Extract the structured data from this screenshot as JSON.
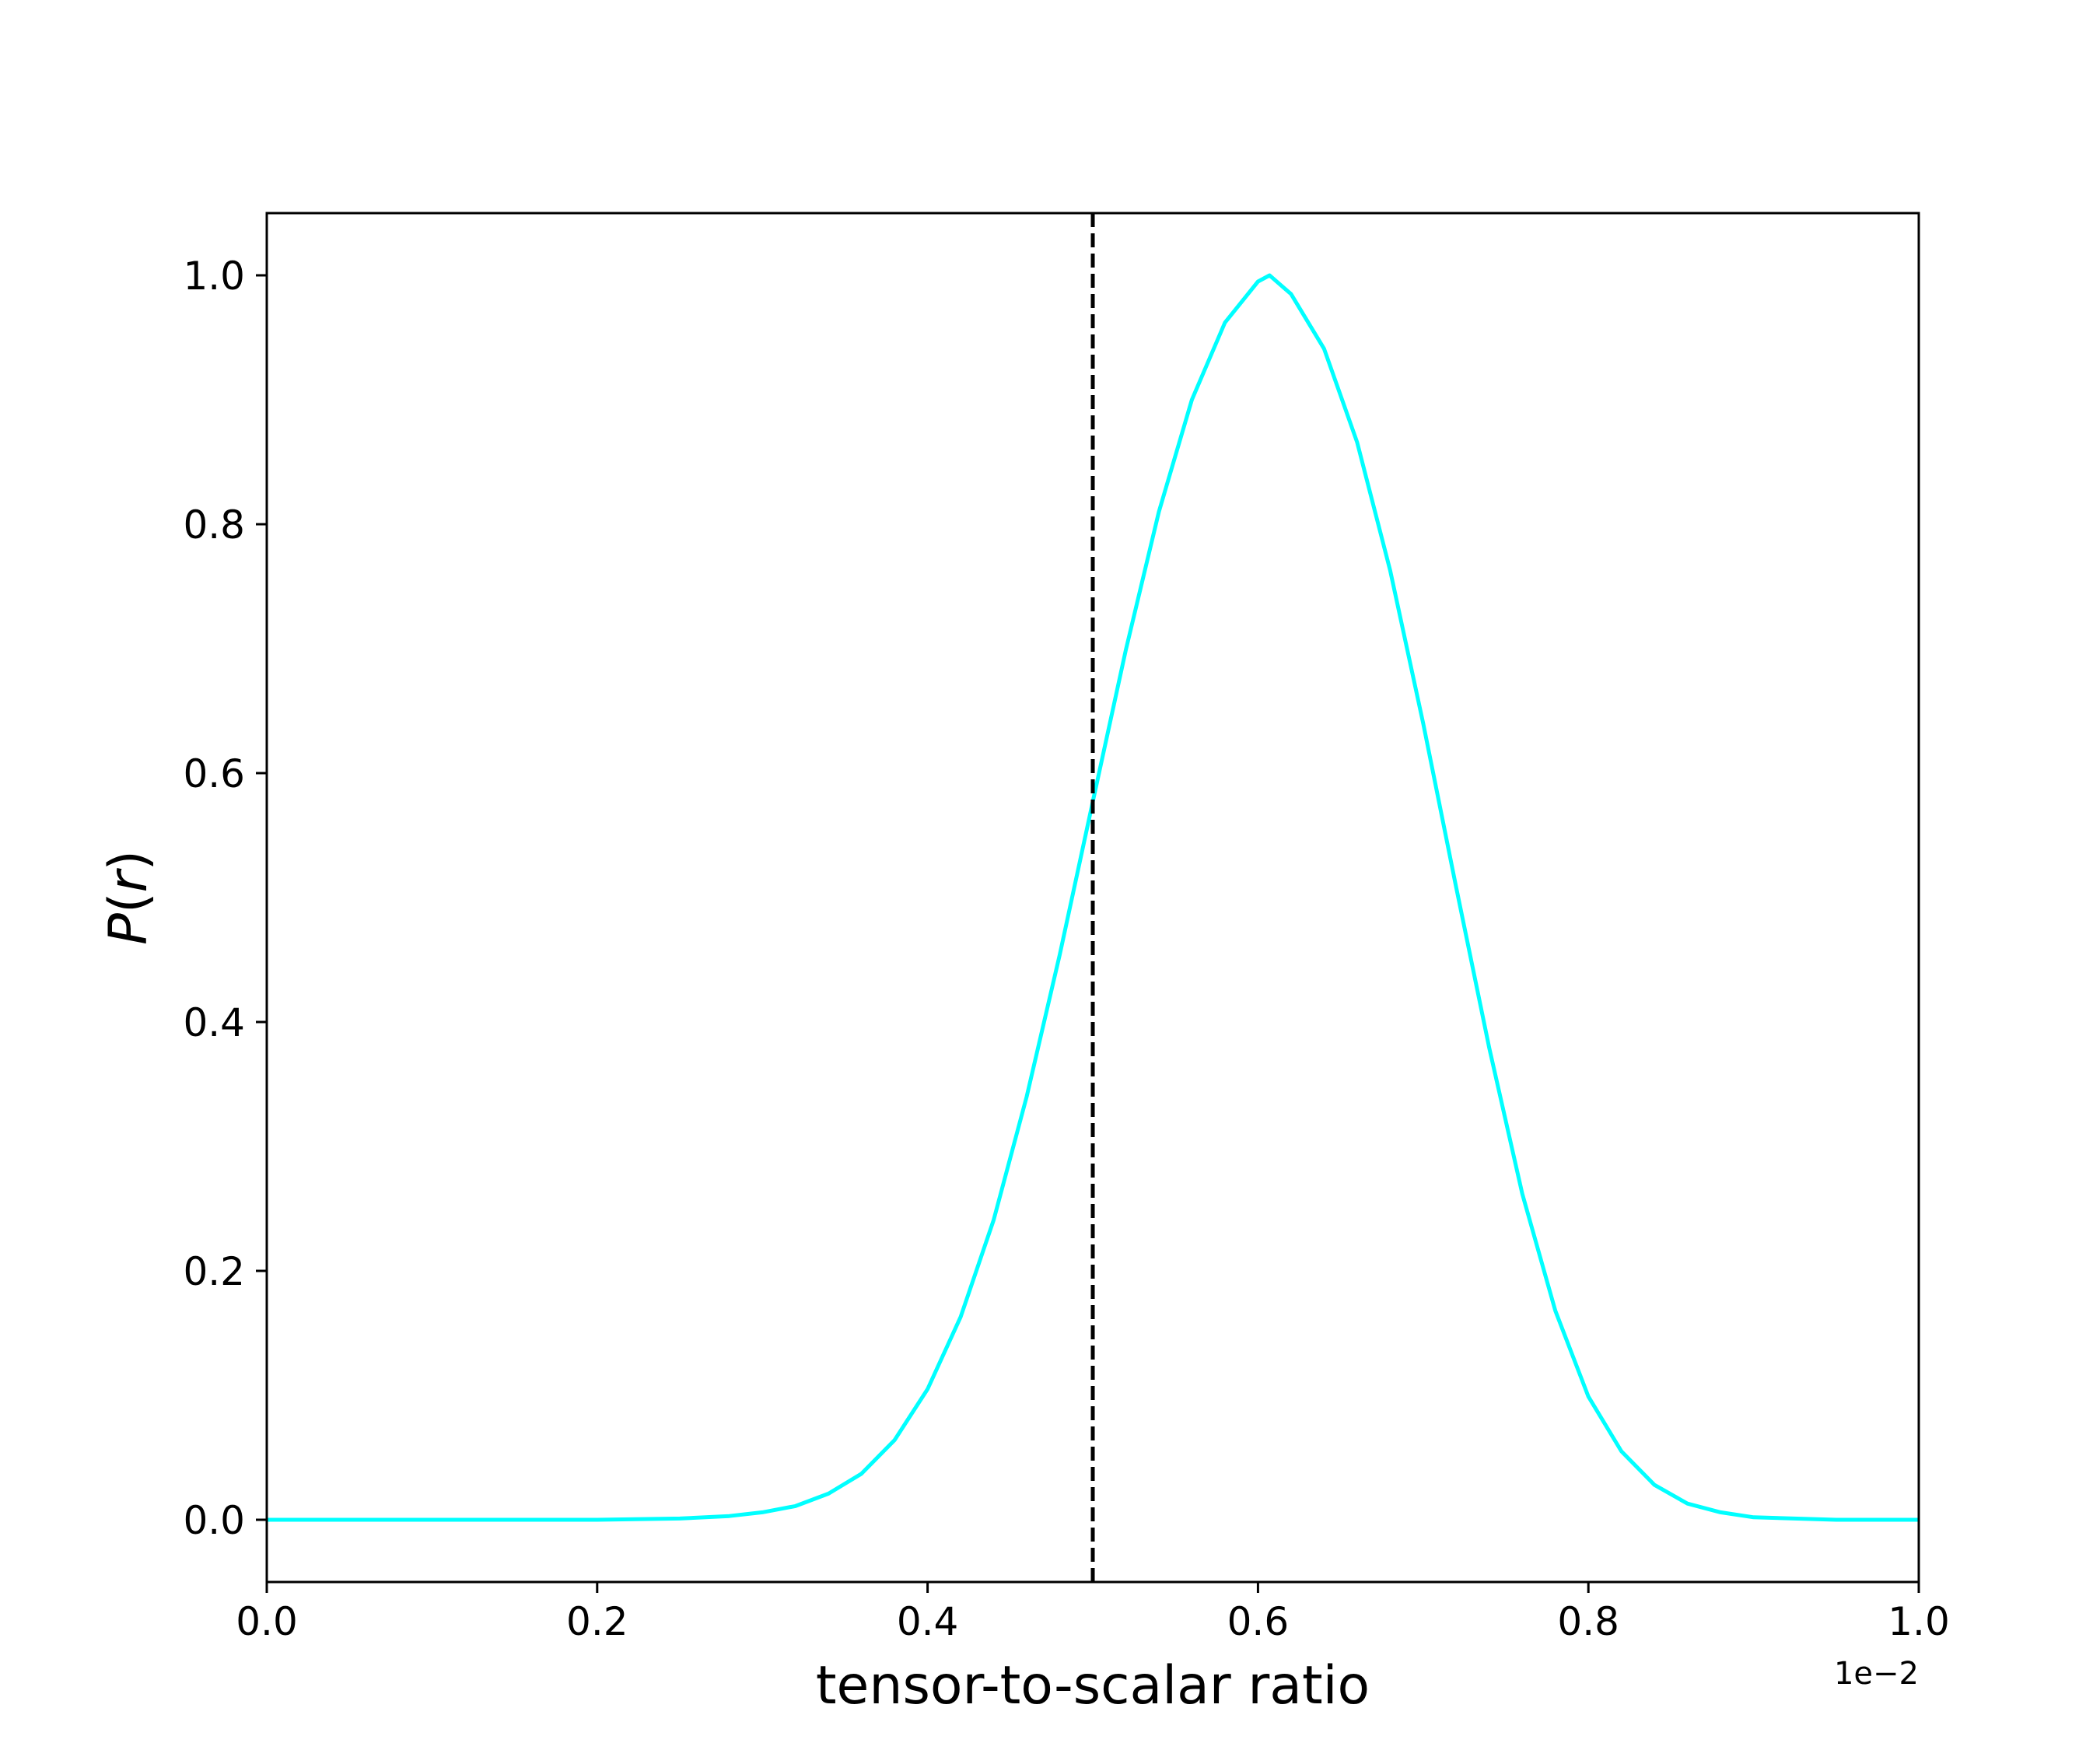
{
  "chart_data": {
    "type": "line",
    "title": "",
    "xlabel": "tensor-to-scalar ratio",
    "ylabel": "P(r)",
    "ylabel_parts": {
      "var": "P",
      "open": "(",
      "arg": "r",
      "close": ")"
    },
    "x_offset_label": "1e−2",
    "xlim": [
      0.0,
      1.0
    ],
    "ylim": [
      -0.05,
      1.05
    ],
    "x_ticks": [
      0.0,
      0.2,
      0.4,
      0.6,
      0.8,
      1.0
    ],
    "x_tick_labels": [
      "0.0",
      "0.2",
      "0.4",
      "0.6",
      "0.8",
      "1.0"
    ],
    "y_ticks": [
      0.0,
      0.2,
      0.4,
      0.6,
      0.8,
      1.0
    ],
    "y_tick_labels": [
      "0.0",
      "0.2",
      "0.4",
      "0.6",
      "0.8",
      "1.0"
    ],
    "grid": false,
    "legend": "none",
    "series": [
      {
        "color": "#00ffff",
        "line_style": "solid",
        "x": [
          0.0,
          0.05,
          0.1,
          0.15,
          0.2,
          0.25,
          0.28,
          0.3,
          0.32,
          0.34,
          0.36,
          0.38,
          0.4,
          0.42,
          0.44,
          0.46,
          0.48,
          0.5,
          0.52,
          0.54,
          0.56,
          0.58,
          0.6,
          0.607,
          0.62,
          0.64,
          0.66,
          0.68,
          0.7,
          0.72,
          0.74,
          0.76,
          0.78,
          0.8,
          0.82,
          0.84,
          0.86,
          0.88,
          0.9,
          0.95,
          1.0
        ],
        "y": [
          0.0,
          0.0,
          0.0,
          0.0,
          0.0,
          0.001,
          0.003,
          0.006,
          0.011,
          0.021,
          0.037,
          0.064,
          0.105,
          0.163,
          0.241,
          0.34,
          0.454,
          0.577,
          0.699,
          0.81,
          0.9,
          0.962,
          0.995,
          1.0,
          0.985,
          0.941,
          0.866,
          0.763,
          0.64,
          0.508,
          0.379,
          0.262,
          0.168,
          0.099,
          0.055,
          0.028,
          0.013,
          0.006,
          0.002,
          0.0,
          0.0
        ]
      }
    ],
    "vlines": [
      {
        "x": 0.5,
        "color": "#000000",
        "line_style": "dashed"
      }
    ]
  }
}
